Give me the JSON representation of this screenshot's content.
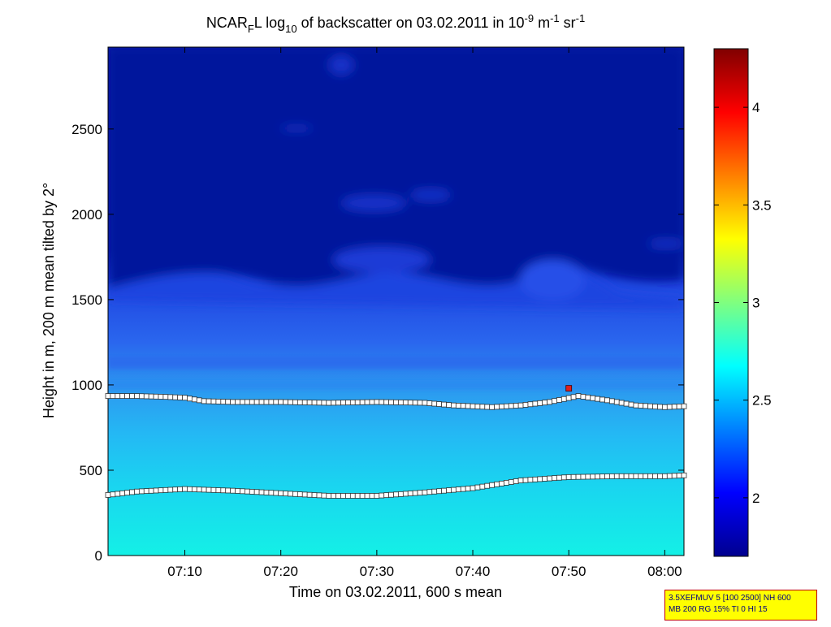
{
  "chart_data": {
    "type": "heatmap",
    "title": {
      "prefix": "NCAR",
      "sub": "F",
      "mid": "L log",
      "base": "10",
      "rest": " of backscatter on 03.02.2011 in 10",
      "exp1": "-9",
      "unit1": " m",
      "exp2": "-1",
      "unit2": " sr",
      "exp3": "-1"
    },
    "xlabel": "Time on 03.02.2011, 600 s mean",
    "ylabel": "Height in m, 200 m mean tilted by 2°",
    "xlim": [
      "07:02",
      "08:02"
    ],
    "ylim": [
      0,
      2980
    ],
    "xticks": [
      "07:10",
      "07:20",
      "07:30",
      "07:40",
      "07:50",
      "08:00"
    ],
    "yticks": [
      0,
      500,
      1000,
      1500,
      2000,
      2500
    ],
    "colorbar": {
      "range": [
        1.7,
        4.3
      ],
      "ticks": [
        "2",
        "2.5",
        "3",
        "3.5",
        "4"
      ],
      "colormap": "jet"
    },
    "boundary_layer": {
      "top_height_m": [
        {
          "t": "07:02",
          "h": 935
        },
        {
          "t": "07:05",
          "h": 935
        },
        {
          "t": "07:08",
          "h": 930
        },
        {
          "t": "07:10",
          "h": 925
        },
        {
          "t": "07:12",
          "h": 905
        },
        {
          "t": "07:15",
          "h": 900
        },
        {
          "t": "07:20",
          "h": 900
        },
        {
          "t": "07:25",
          "h": 895
        },
        {
          "t": "07:30",
          "h": 900
        },
        {
          "t": "07:35",
          "h": 895
        },
        {
          "t": "07:38",
          "h": 880
        },
        {
          "t": "07:42",
          "h": 870
        },
        {
          "t": "07:45",
          "h": 880
        },
        {
          "t": "07:48",
          "h": 900
        },
        {
          "t": "07:51",
          "h": 935
        },
        {
          "t": "07:54",
          "h": 910
        },
        {
          "t": "07:57",
          "h": 880
        },
        {
          "t": "08:00",
          "h": 870
        },
        {
          "t": "08:02",
          "h": 875
        }
      ],
      "mixed_layer_height_m": [
        {
          "t": "07:02",
          "h": 355
        },
        {
          "t": "07:05",
          "h": 375
        },
        {
          "t": "07:10",
          "h": 390
        },
        {
          "t": "07:15",
          "h": 380
        },
        {
          "t": "07:20",
          "h": 365
        },
        {
          "t": "07:25",
          "h": 350
        },
        {
          "t": "07:30",
          "h": 350
        },
        {
          "t": "07:35",
          "h": 370
        },
        {
          "t": "07:40",
          "h": 395
        },
        {
          "t": "07:45",
          "h": 440
        },
        {
          "t": "07:50",
          "h": 460
        },
        {
          "t": "07:55",
          "h": 465
        },
        {
          "t": "08:00",
          "h": 465
        },
        {
          "t": "08:02",
          "h": 470
        }
      ],
      "outlier": {
        "t": "07:50",
        "h": 980
      }
    },
    "annotation": [
      "3.5XEFMUV 5 [100 2500] NH 600",
      "MB 200 RG 15% TI 0 HI 15"
    ]
  }
}
